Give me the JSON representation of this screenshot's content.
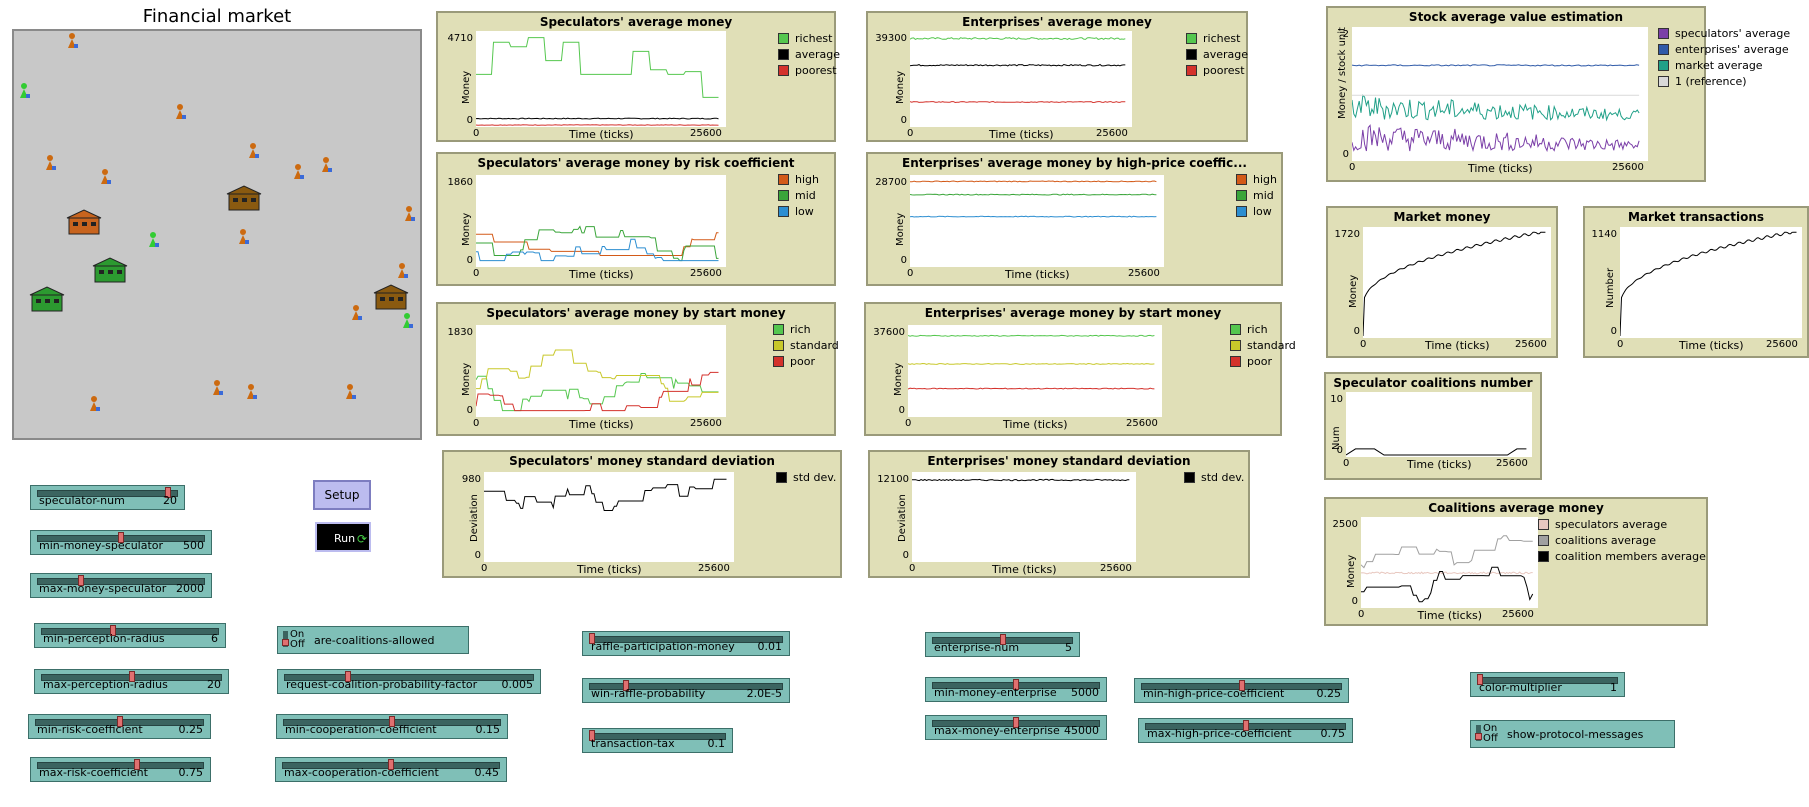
{
  "world": {
    "title": "Financial market"
  },
  "colors": {
    "plot_bg": "#e0dfb7",
    "widget": "#7fbfb7",
    "button": "#bcbcef",
    "world_bg": "#c8c8c8"
  },
  "plots": {
    "spec_avg": {
      "title": "Speculators' average money",
      "ylabel": "Money",
      "xlabel": "Time (ticks)",
      "ymax": "4710",
      "ymin": "0",
      "xmin": "0",
      "xmax": "25600",
      "legend": [
        {
          "label": "richest",
          "color": "#55c74f"
        },
        {
          "label": "average",
          "color": "#000000"
        },
        {
          "label": "poorest",
          "color": "#d4322c"
        }
      ]
    },
    "ent_avg": {
      "title": "Enterprises' average money",
      "ylabel": "Money",
      "xlabel": "Time (ticks)",
      "ymax": "39300",
      "ymin": "0",
      "xmin": "0",
      "xmax": "25600",
      "legend": [
        {
          "label": "richest",
          "color": "#55c74f"
        },
        {
          "label": "average",
          "color": "#000000"
        },
        {
          "label": "poorest",
          "color": "#d4322c"
        }
      ]
    },
    "spec_risk": {
      "title": "Speculators' average money by risk coefficient",
      "ylabel": "Money",
      "xlabel": "Time (ticks)",
      "ymax": "1860",
      "ymin": "0",
      "xmin": "0",
      "xmax": "25600",
      "legend": [
        {
          "label": "high",
          "color": "#d35a18"
        },
        {
          "label": "mid",
          "color": "#3aa53a"
        },
        {
          "label": "low",
          "color": "#2c8ed1"
        }
      ]
    },
    "ent_high": {
      "title": "Enterprises' average money by high-price coeffic...",
      "ylabel": "Money",
      "xlabel": "Time (ticks)",
      "ymax": "28700",
      "ymin": "0",
      "xmin": "0",
      "xmax": "25600",
      "legend": [
        {
          "label": "high",
          "color": "#d35a18"
        },
        {
          "label": "mid",
          "color": "#3aa53a"
        },
        {
          "label": "low",
          "color": "#2c8ed1"
        }
      ]
    },
    "spec_start": {
      "title": "Speculators' average money by start money",
      "ylabel": "Money",
      "xlabel": "Time (ticks)",
      "ymax": "1830",
      "ymin": "0",
      "xmin": "0",
      "xmax": "25600",
      "legend": [
        {
          "label": "rich",
          "color": "#55c74f"
        },
        {
          "label": "standard",
          "color": "#c8c82a"
        },
        {
          "label": "poor",
          "color": "#d4322c"
        }
      ]
    },
    "ent_start": {
      "title": "Enterprises' average money by start money",
      "ylabel": "Money",
      "xlabel": "Time (ticks)",
      "ymax": "37600",
      "ymin": "0",
      "xmin": "0",
      "xmax": "25600",
      "legend": [
        {
          "label": "rich",
          "color": "#55c74f"
        },
        {
          "label": "standard",
          "color": "#c8c82a"
        },
        {
          "label": "poor",
          "color": "#d4322c"
        }
      ]
    },
    "spec_std": {
      "title": "Speculators' money standard deviation",
      "ylabel": "Deviation",
      "xlabel": "Time (ticks)",
      "ymax": "980",
      "ymin": "0",
      "xmin": "0",
      "xmax": "25600",
      "legend": [
        {
          "label": "std dev.",
          "color": "#000000"
        }
      ]
    },
    "ent_std": {
      "title": "Enterprises' money standard deviation",
      "ylabel": "Deviation",
      "xlabel": "Time (ticks)",
      "ymax": "12100",
      "ymin": "0",
      "xmin": "0",
      "xmax": "25600",
      "legend": [
        {
          "label": "std dev.",
          "color": "#000000"
        }
      ]
    },
    "stock": {
      "title": "Stock average value estimation",
      "ylabel": "Money / stock unit",
      "xlabel": "Time (ticks)",
      "ymax": "2",
      "ymin": "0",
      "xmin": "0",
      "xmax": "25600",
      "legend": [
        {
          "label": "speculators' average",
          "color": "#7b3fa8"
        },
        {
          "label": "enterprises' average",
          "color": "#2f5aa8"
        },
        {
          "label": "market average",
          "color": "#20a088"
        },
        {
          "label": "1 (reference)",
          "color": "#d9d9d9"
        }
      ]
    },
    "market_money": {
      "title": "Market money",
      "ylabel": "Money",
      "xlabel": "Time (ticks)",
      "ymax": "1720",
      "ymin": "0",
      "xmin": "0",
      "xmax": "25600",
      "legend": []
    },
    "market_trans": {
      "title": "Market transactions",
      "ylabel": "Number",
      "xlabel": "Time (ticks)",
      "ymax": "1140",
      "ymin": "0",
      "xmin": "0",
      "xmax": "25600",
      "legend": []
    },
    "coal_num": {
      "title": "Speculator coalitions number",
      "ylabel": "Num",
      "xlabel": "Time (ticks)",
      "ymax": "10",
      "ymin": "0",
      "xmin": "0",
      "xmax": "25600",
      "legend": []
    },
    "coal_money": {
      "title": "Coalitions average money",
      "ylabel": "Money",
      "xlabel": "Time (ticks)",
      "ymax": "2500",
      "ymin": "0",
      "xmin": "0",
      "xmax": "25600",
      "legend": [
        {
          "label": "speculators average",
          "color": "#e8c8c0"
        },
        {
          "label": "coalitions average",
          "color": "#a0a0a0"
        },
        {
          "label": "coalition members average",
          "color": "#000000"
        }
      ]
    }
  },
  "controls": {
    "setup": "Setup",
    "run": "Run",
    "sliders": {
      "speculator_num": {
        "name": "speculator-num",
        "value": "20",
        "fraction": 0.95
      },
      "min_money_speculator": {
        "name": "min-money-speculator",
        "value": "500",
        "fraction": 0.5
      },
      "max_money_speculator": {
        "name": "max-money-speculator",
        "value": "2000",
        "fraction": 0.25
      },
      "min_perception_radius": {
        "name": "min-perception-radius",
        "value": "6",
        "fraction": 0.4
      },
      "max_perception_radius": {
        "name": "max-perception-radius",
        "value": "20",
        "fraction": 0.5
      },
      "min_risk_coefficient": {
        "name": "min-risk-coefficient",
        "value": "0.25",
        "fraction": 0.5
      },
      "max_risk_coefficient": {
        "name": "max-risk-coefficient",
        "value": "0.75",
        "fraction": 0.6
      },
      "request_coalition_probability_factor": {
        "name": "request-coalition-probability-factor",
        "value": "0.005",
        "fraction": 0.25
      },
      "min_cooperation_coefficient": {
        "name": "min-cooperation-coefficient",
        "value": "0.15",
        "fraction": 0.5
      },
      "max_cooperation_coefficient": {
        "name": "max-cooperation-coefficient",
        "value": "0.45",
        "fraction": 0.5
      },
      "raffle_participation_money": {
        "name": "raffle-participation-money",
        "value": "0.01",
        "fraction": 0.0
      },
      "win_raffle_probability": {
        "name": "win-raffle-probability",
        "value": "2.0E-5",
        "fraction": 0.18
      },
      "transaction_tax": {
        "name": "transaction-tax",
        "value": "0.1",
        "fraction": 0.0
      },
      "enterprise_num": {
        "name": "enterprise-num",
        "value": "5",
        "fraction": 0.5
      },
      "min_money_enterprise": {
        "name": "min-money-enterprise",
        "value": "5000",
        "fraction": 0.5
      },
      "max_money_enterprise": {
        "name": "max-money-enterprise",
        "value": "45000",
        "fraction": 0.5
      },
      "min_high_price_coefficient": {
        "name": "min-high-price-coefficient",
        "value": "0.25",
        "fraction": 0.5
      },
      "max_high_price_coefficient": {
        "name": "max-high-price-coefficient",
        "value": "0.75",
        "fraction": 0.5
      },
      "color_multiplier": {
        "name": "color-multiplier",
        "value": "1",
        "fraction": 0.0
      }
    },
    "switches": {
      "are_coalitions_allowed": {
        "name": "are-coalitions-allowed",
        "on": "On",
        "off": "Off",
        "state": "off"
      },
      "show_protocol_messages": {
        "name": "show-protocol-messages",
        "on": "On",
        "off": "Off",
        "state": "off"
      }
    }
  }
}
